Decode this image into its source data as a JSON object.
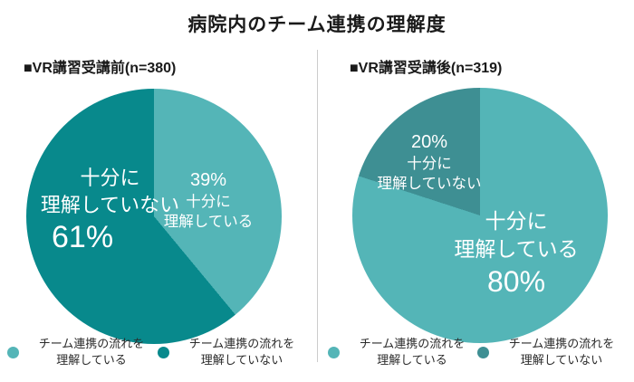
{
  "title": "病院内のチーム連携の理解度",
  "chart_data": [
    {
      "type": "pie",
      "header": "■VR講習受講前(n=380)",
      "n": 380,
      "legend_position": "bottom",
      "slices": [
        {
          "name": "十分に理解している",
          "value": 39,
          "pct": "39%",
          "color": "#54b5b7",
          "label_lines": [
            "十分に",
            "理解している"
          ]
        },
        {
          "name": "十分に理解していない",
          "value": 61,
          "pct": "61%",
          "color": "#08898c",
          "label_lines": [
            "十分に",
            "理解していない"
          ]
        }
      ],
      "legend": [
        {
          "lines": [
            "チーム連携の流れを",
            "理解している"
          ],
          "color": "#54b5b7"
        },
        {
          "lines": [
            "チーム連携の流れを",
            "理解していない"
          ],
          "color": "#08898c"
        }
      ]
    },
    {
      "type": "pie",
      "header": "■VR講習受講後(n=319)",
      "n": 319,
      "legend_position": "bottom",
      "slices": [
        {
          "name": "十分に理解している",
          "value": 80,
          "pct": "80%",
          "color": "#54b5b7",
          "label_lines": [
            "十分に",
            "理解している"
          ]
        },
        {
          "name": "十分に理解していない",
          "value": 20,
          "pct": "20%",
          "color": "#3e8f93",
          "label_lines": [
            "十分に",
            "理解していない"
          ]
        }
      ],
      "legend": [
        {
          "lines": [
            "チーム連携の流れを",
            "理解している"
          ],
          "color": "#54b5b7"
        },
        {
          "lines": [
            "チーム連携の流れを",
            "理解していない"
          ],
          "color": "#3e8f93"
        }
      ]
    }
  ]
}
